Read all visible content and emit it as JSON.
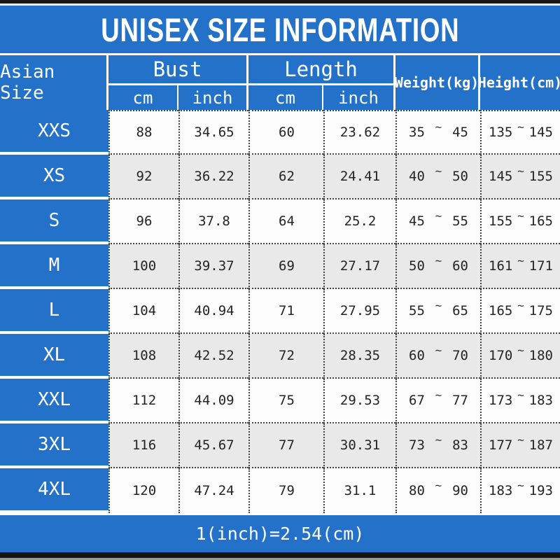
{
  "title": "UNISEX SIZE INFORMATION",
  "header": {
    "size_column": "Asian Size",
    "bust_label": "Bust",
    "length_label": "Length",
    "bust_cm": "cm",
    "bust_inch": "inch",
    "length_cm": "cm",
    "length_inch": "inch",
    "weight_label": "Weight(kg)",
    "height_label": "Height(cm)"
  },
  "tilde_char": "~",
  "rows": [
    {
      "size": "XXS",
      "bust_cm": "88",
      "bust_inch": "34.65",
      "length_cm": "60",
      "length_inch": "23.62",
      "weight_min": "35",
      "weight_max": "45",
      "height_min": "135",
      "height_max": "145"
    },
    {
      "size": "XS",
      "bust_cm": "92",
      "bust_inch": "36.22",
      "length_cm": "62",
      "length_inch": "24.41",
      "weight_min": "40",
      "weight_max": "50",
      "height_min": "145",
      "height_max": "155"
    },
    {
      "size": "S",
      "bust_cm": "96",
      "bust_inch": "37.8",
      "length_cm": "64",
      "length_inch": "25.2",
      "weight_min": "45",
      "weight_max": "55",
      "height_min": "155",
      "height_max": "165"
    },
    {
      "size": "M",
      "bust_cm": "100",
      "bust_inch": "39.37",
      "length_cm": "69",
      "length_inch": "27.17",
      "weight_min": "50",
      "weight_max": "60",
      "height_min": "161",
      "height_max": "171"
    },
    {
      "size": "L",
      "bust_cm": "104",
      "bust_inch": "40.94",
      "length_cm": "71",
      "length_inch": "27.95",
      "weight_min": "55",
      "weight_max": "65",
      "height_min": "165",
      "height_max": "175"
    },
    {
      "size": "XL",
      "bust_cm": "108",
      "bust_inch": "42.52",
      "length_cm": "72",
      "length_inch": "28.35",
      "weight_min": "60",
      "weight_max": "70",
      "height_min": "170",
      "height_max": "180"
    },
    {
      "size": "XXL",
      "bust_cm": "112",
      "bust_inch": "44.09",
      "length_cm": "75",
      "length_inch": "29.53",
      "weight_min": "67",
      "weight_max": "77",
      "height_min": "173",
      "height_max": "183"
    },
    {
      "size": "3XL",
      "bust_cm": "116",
      "bust_inch": "45.67",
      "length_cm": "77",
      "length_inch": "30.31",
      "weight_min": "73",
      "weight_max": "83",
      "height_min": "177",
      "height_max": "187"
    },
    {
      "size": "4XL",
      "bust_cm": "120",
      "bust_inch": "47.24",
      "length_cm": "79",
      "length_inch": "31.1",
      "weight_min": "80",
      "weight_max": "90",
      "height_min": "183",
      "height_max": "193"
    }
  ],
  "footer_note": "1(inch)=2.54(cm)",
  "colors": {
    "blue": "#2371c8",
    "altRow": "#e9e9e9"
  },
  "chart_data": {
    "type": "table",
    "title": "UNISEX SIZE INFORMATION",
    "columns": [
      "Asian Size",
      "Bust cm",
      "Bust inch",
      "Length cm",
      "Length inch",
      "Weight(kg)",
      "Height(cm)"
    ],
    "rows": [
      [
        "XXS",
        88,
        34.65,
        60,
        23.62,
        "35~45",
        "135~145"
      ],
      [
        "XS",
        92,
        36.22,
        62,
        24.41,
        "40~50",
        "145~155"
      ],
      [
        "S",
        96,
        37.8,
        64,
        25.2,
        "45~55",
        "155~165"
      ],
      [
        "M",
        100,
        39.37,
        69,
        27.17,
        "50~60",
        "161~171"
      ],
      [
        "L",
        104,
        40.94,
        71,
        27.95,
        "55~65",
        "165~175"
      ],
      [
        "XL",
        108,
        42.52,
        72,
        28.35,
        "60~70",
        "170~180"
      ],
      [
        "XXL",
        112,
        44.09,
        75,
        29.53,
        "67~77",
        "173~183"
      ],
      [
        "3XL",
        116,
        45.67,
        77,
        30.31,
        "73~83",
        "177~187"
      ],
      [
        "4XL",
        120,
        47.24,
        79,
        31.1,
        "80~90",
        "183~193"
      ]
    ],
    "footnote": "1(inch)=2.54(cm)"
  }
}
